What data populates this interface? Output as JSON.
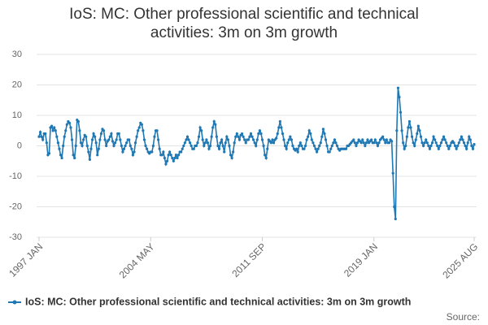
{
  "chart_data": {
    "type": "line",
    "title": "IoS: MC: Other professional scientific and technical activities: 3m on 3m growth",
    "source": "Source:",
    "categories": [
      "1997 JAN",
      null,
      null,
      null,
      null,
      null,
      null,
      null,
      null,
      null,
      null,
      null,
      null,
      null,
      null,
      null,
      null,
      null,
      null,
      null,
      null,
      null,
      null,
      null,
      null,
      null,
      null,
      null,
      null,
      null,
      null,
      null,
      null,
      null,
      null,
      null,
      null,
      null,
      null,
      null,
      null,
      null,
      null,
      null,
      null,
      null,
      null,
      null,
      null,
      null,
      null,
      null,
      null,
      null,
      null,
      null,
      null,
      null,
      null,
      null,
      null,
      null,
      null,
      null,
      null,
      null,
      null,
      null,
      null,
      null,
      null,
      null,
      null,
      null,
      null,
      null,
      null,
      null,
      null,
      null,
      null,
      null,
      null,
      null,
      null,
      null,
      null,
      null,
      "2004 MAY",
      null,
      null,
      null,
      null,
      null,
      null,
      null,
      null,
      null,
      null,
      null,
      null,
      null,
      null,
      null,
      null,
      null,
      null,
      null,
      null,
      null,
      null,
      null,
      null,
      null,
      null,
      null,
      null,
      null,
      null,
      null,
      null,
      null,
      null,
      null,
      null,
      null,
      null,
      null,
      null,
      null,
      null,
      null,
      null,
      null,
      null,
      null,
      null,
      null,
      null,
      null,
      null,
      null,
      null,
      null,
      null,
      null,
      null,
      null,
      null,
      null,
      null,
      null,
      null,
      null,
      null,
      null,
      null,
      null,
      null,
      null,
      null,
      null,
      null,
      null,
      null,
      null,
      null,
      null,
      null,
      null,
      null,
      null,
      null,
      null,
      null,
      null,
      "2011 SEP",
      null,
      null,
      null,
      null,
      null,
      null,
      null,
      null,
      null,
      null,
      null,
      null,
      null,
      null,
      null,
      null,
      null,
      null,
      null,
      null,
      null,
      null,
      null,
      null,
      null,
      null,
      null,
      null,
      null,
      null,
      null,
      null,
      null,
      null,
      null,
      null,
      null,
      null,
      null,
      null,
      null,
      null,
      null,
      null,
      null,
      null,
      null,
      null,
      null,
      null,
      null,
      null,
      null,
      null,
      null,
      null,
      null,
      null,
      null,
      null,
      null,
      null,
      null,
      null,
      null,
      null,
      null,
      null,
      null,
      null,
      null,
      null,
      null,
      null,
      null,
      null,
      null,
      null,
      null,
      null,
      null,
      null,
      null,
      null,
      null,
      null,
      null,
      "2019 JAN",
      null,
      null,
      null,
      null,
      null,
      null,
      null,
      null,
      null,
      null,
      null,
      null,
      null,
      null,
      null,
      null,
      null,
      null,
      null,
      null,
      null,
      null,
      null,
      null,
      null,
      null,
      null,
      null,
      null,
      null,
      null,
      null,
      null,
      null,
      null,
      null,
      null,
      null,
      null,
      null,
      null,
      null,
      null,
      null,
      null,
      null,
      null,
      null,
      null,
      null,
      null,
      null,
      null,
      null,
      null,
      null,
      null,
      null,
      null,
      null,
      null,
      null,
      null,
      null,
      null,
      null,
      null,
      null,
      null,
      null,
      null,
      null,
      null,
      null,
      null,
      null,
      null,
      null,
      "2025 AUG"
    ],
    "series": [
      {
        "name": "IoS: MC: Other professional scientific and technical activities: 3m on 3m growth",
        "color": "#1f78b4",
        "values": [
          3,
          4.5,
          3,
          2,
          4,
          4,
          1,
          -3,
          -2.5,
          6,
          6.5,
          5,
          6,
          5,
          3,
          1,
          -1,
          -3,
          -4,
          0,
          3,
          5,
          7,
          8,
          7.5,
          6,
          2,
          -3,
          -4,
          0,
          8.5,
          8,
          5,
          1,
          0,
          2,
          3.5,
          3,
          0,
          -2,
          -4.5,
          -1,
          2,
          4,
          3,
          1,
          -3,
          -1,
          2,
          4,
          5.5,
          5,
          2,
          0,
          1.5,
          2,
          3,
          4,
          1.5,
          0,
          1,
          2,
          4,
          4,
          2,
          0,
          -2,
          -1,
          0,
          1,
          2,
          2,
          0,
          -1,
          -3,
          -2,
          1,
          3,
          5,
          6,
          7.5,
          7,
          5,
          2,
          0,
          -1,
          -2,
          -2.5,
          -2,
          -2,
          0,
          3,
          5,
          5,
          2,
          -1,
          -3,
          -3,
          -2,
          -4,
          -6,
          -5,
          -3,
          -2,
          -3,
          -4,
          -5,
          -4,
          -3,
          -4,
          -3,
          -2,
          -2,
          -1,
          0,
          1,
          2,
          3,
          2,
          1,
          0,
          -1,
          -1,
          0,
          0,
          1,
          3,
          6,
          5,
          2,
          0,
          1,
          2,
          1,
          -1,
          0,
          3,
          6,
          8,
          7,
          3,
          0,
          -1,
          1,
          2,
          0,
          -2,
          1,
          3,
          2,
          0,
          -3,
          -4,
          -2,
          1,
          3,
          4,
          3,
          2,
          3.5,
          4,
          3,
          2,
          1,
          2,
          2,
          3,
          4,
          3,
          2,
          1,
          0,
          2,
          4,
          5,
          4,
          2,
          0,
          -3,
          -4,
          -1,
          2,
          1.5,
          1,
          2,
          1,
          2,
          2.5,
          4,
          6,
          8,
          6,
          4,
          2,
          0,
          -1,
          1,
          2,
          3,
          2,
          0,
          -1,
          -1.5,
          -1,
          -2,
          0,
          1,
          0,
          -1,
          -1,
          0,
          2,
          3,
          5,
          4,
          2,
          1,
          0,
          -1,
          -2,
          -1,
          0,
          1,
          3,
          5.5,
          4,
          2,
          0,
          -2,
          -2,
          -1,
          0,
          1,
          2,
          1,
          0,
          -1,
          -1.5,
          -1,
          -1,
          -1,
          -1,
          -1,
          0,
          0,
          0.5,
          1,
          1.5,
          2,
          1,
          0,
          1,
          2,
          1.5,
          1,
          2,
          1,
          0,
          1,
          2,
          1,
          1.5,
          2,
          1,
          1,
          2,
          1,
          0,
          1,
          2,
          2.5,
          3,
          2,
          1,
          2,
          1,
          1,
          2,
          1.5,
          -9,
          -20,
          -24,
          5,
          19,
          16,
          11,
          5,
          1,
          -1,
          0,
          3,
          6,
          8,
          6,
          3,
          1,
          0,
          2,
          4,
          6.5,
          5,
          3,
          1,
          0,
          1,
          2,
          1,
          0,
          -1,
          0,
          1,
          3,
          2,
          1,
          0,
          -1,
          0,
          1,
          2,
          3,
          2,
          1,
          0,
          -1,
          0,
          1,
          1.5,
          1,
          0,
          -1,
          0,
          1,
          2,
          3,
          2,
          1,
          0,
          -1,
          1,
          3,
          2,
          0,
          -1,
          0.5
        ]
      }
    ],
    "ylim": [
      -30,
      30
    ],
    "yticks": [
      -30,
      -20,
      -10,
      0,
      10,
      20,
      30
    ],
    "grid": true,
    "legend": "bottom"
  }
}
